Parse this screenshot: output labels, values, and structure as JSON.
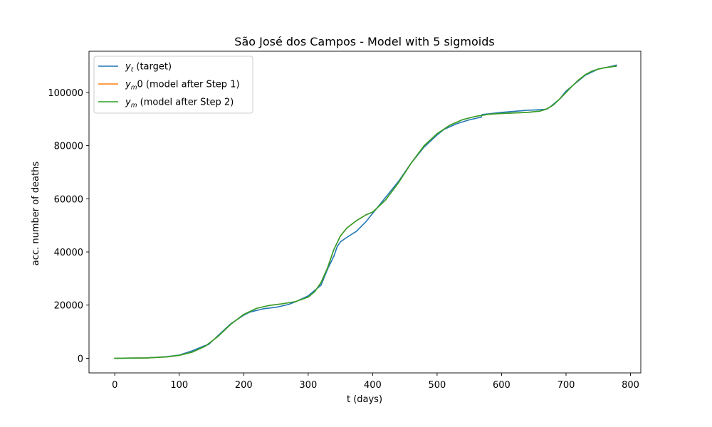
{
  "chart_data": {
    "type": "line",
    "title": "São José dos Campos - Model with 5 sigmoids",
    "xlabel": "t (days)",
    "ylabel": "acc. number of deaths",
    "xlim": [
      -40,
      816
    ],
    "ylim": [
      -5500,
      115500
    ],
    "xticks": [
      0,
      100,
      200,
      300,
      400,
      500,
      600,
      700,
      800
    ],
    "yticks": [
      0,
      20000,
      40000,
      60000,
      80000,
      100000
    ],
    "xtick_labels": [
      "0",
      "100",
      "200",
      "300",
      "400",
      "500",
      "600",
      "700",
      "800"
    ],
    "ytick_labels": [
      "0",
      "20000",
      "40000",
      "60000",
      "80000",
      "100000"
    ],
    "grid": false,
    "legend_position": "top-left",
    "series": [
      {
        "name": "y_t (target)",
        "legend_base": "y",
        "legend_sub": "t",
        "legend_rest": " (target)",
        "color": "#1f77b4",
        "x": [
          0,
          50,
          80,
          100,
          120,
          140,
          145,
          150,
          160,
          180,
          200,
          210,
          230,
          250,
          260,
          270,
          280,
          300,
          320,
          330,
          340,
          345,
          350,
          360,
          375,
          390,
          400,
          420,
          440,
          460,
          480,
          500,
          510,
          530,
          550,
          565,
          568,
          570,
          600,
          620,
          640,
          660,
          670,
          675,
          690,
          700,
          710,
          730,
          750,
          770,
          778
        ],
        "y": [
          0,
          150,
          600,
          1200,
          2800,
          4800,
          5100,
          6200,
          8500,
          13000,
          16200,
          17400,
          18600,
          19200,
          19700,
          20300,
          21200,
          23500,
          27500,
          33500,
          38500,
          42000,
          43800,
          45500,
          47800,
          51500,
          54500,
          60500,
          66500,
          73500,
          79500,
          84000,
          86000,
          88200,
          89700,
          90500,
          90600,
          91700,
          92500,
          92900,
          93300,
          93500,
          93700,
          94500,
          97500,
          100500,
          102500,
          106500,
          108800,
          109800,
          110300
        ]
      },
      {
        "name": "y_m0 (model after Step 1)",
        "legend_base": "y",
        "legend_sub": "m",
        "legend_rest": "0 (model after Step 1)",
        "color": "#ff7f0e",
        "x": [
          0,
          50,
          80,
          100,
          120,
          140,
          160,
          180,
          200,
          220,
          240,
          260,
          280,
          300,
          310,
          320,
          330,
          340,
          350,
          360,
          375,
          390,
          400,
          420,
          440,
          460,
          480,
          500,
          520,
          540,
          560,
          580,
          600,
          620,
          640,
          660,
          670,
          680,
          690,
          700,
          710,
          720,
          730,
          740,
          750,
          760,
          778
        ],
        "y": [
          0,
          150,
          500,
          1100,
          2300,
          4500,
          8200,
          12800,
          16500,
          18800,
          19900,
          20500,
          21300,
          23000,
          25000,
          28500,
          34000,
          41000,
          46000,
          49000,
          51800,
          54000,
          55000,
          59500,
          66000,
          73500,
          80000,
          84500,
          87700,
          89800,
          91000,
          91800,
          92100,
          92300,
          92500,
          93000,
          93800,
          95200,
          97500,
          100000,
          102500,
          104800,
          106700,
          108000,
          108800,
          109300,
          109900
        ]
      },
      {
        "name": "y_m (model after Step 2)",
        "legend_base": "y",
        "legend_sub": "m",
        "legend_rest": " (model after Step 2)",
        "color": "#2ca02c",
        "x": [
          0,
          50,
          80,
          100,
          120,
          140,
          160,
          180,
          200,
          220,
          240,
          260,
          280,
          300,
          310,
          320,
          330,
          340,
          350,
          360,
          375,
          390,
          400,
          420,
          440,
          460,
          480,
          500,
          520,
          540,
          560,
          580,
          600,
          620,
          640,
          660,
          670,
          680,
          690,
          700,
          710,
          720,
          730,
          740,
          750,
          760,
          778
        ],
        "y": [
          0,
          150,
          500,
          1100,
          2300,
          4500,
          8200,
          12800,
          16500,
          18800,
          19900,
          20500,
          21300,
          23000,
          25000,
          28500,
          34000,
          41000,
          46000,
          49000,
          51800,
          54000,
          55000,
          59500,
          66000,
          73500,
          80000,
          84500,
          87700,
          89800,
          91000,
          91800,
          92100,
          92300,
          92500,
          93000,
          93800,
          95200,
          97500,
          100000,
          102500,
          104800,
          106700,
          108000,
          108800,
          109300,
          109900
        ]
      }
    ]
  }
}
